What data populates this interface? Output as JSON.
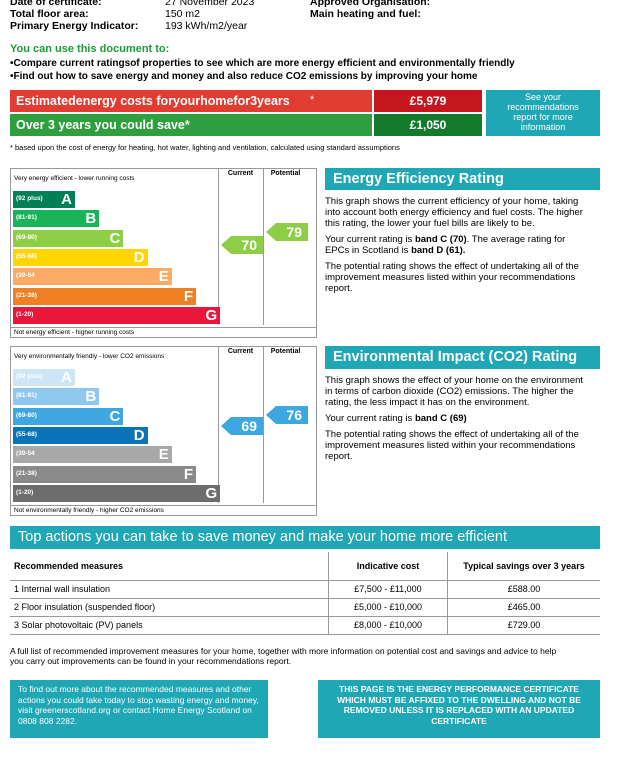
{
  "header": {
    "rows": [
      {
        "label": "Date of certificate:",
        "value": "27 November 2023"
      },
      {
        "label": "Total floor area:",
        "value": "150 m2"
      },
      {
        "label": "Primary Energy Indicator:",
        "value": "193 kWh/m2/year"
      }
    ],
    "right_labels": [
      "Approved Organisation:",
      "Main heating and fuel:"
    ]
  },
  "intro": {
    "title": "You can use this document to:",
    "bullets": [
      "•Compare current ratingsof properties to see which are more energy efficient and environmentally friendly",
      "•Find out how to save energy and money and also reduce CO2 emissions by improving your home"
    ]
  },
  "costs": {
    "row1_label": "Estimatedenergy costs foryourhomefor3years",
    "row1_mark": "*",
    "row1_value": "£5,979",
    "row2_label": "Over 3 years you could save*",
    "row2_value": "£1,050",
    "side_note": "See your recommendations report for more information",
    "footnote": "* based upon the cost of energy for heating, hot water, lighting and ventilation, calculated using standard assumptions"
  },
  "energy_chart": {
    "top_label": "Very energy efficient - lower running costs",
    "bottom_label": "Not energy efficient - higher running costs",
    "column_headers": [
      "Current",
      "Potential"
    ],
    "bands": [
      {
        "range": "(92 plus)",
        "letter": "A"
      },
      {
        "range": "(81-91)",
        "letter": "B"
      },
      {
        "range": "(69-80)",
        "letter": "C"
      },
      {
        "range": "(55-68)",
        "letter": "D"
      },
      {
        "range": "(39-54",
        "letter": "E"
      },
      {
        "range": "(21-38)",
        "letter": "F"
      },
      {
        "range": "(1-20)",
        "letter": "G"
      }
    ],
    "current": 70,
    "potential": 79
  },
  "energy_text": {
    "title": "Energy Efficiency Rating",
    "paragraph1": "This graph shows the current efficiency of your home, taking into account both energy efficiency and fuel costs. The higher this rating, the lower your fuel bills are likely to be.",
    "paragraph2": [
      "Your current rating is ",
      "band C (70)",
      ". The average rating for EPCs in Scotland is ",
      "band D (61)."
    ],
    "paragraph3": "The potential rating shows the effect of undertaking all of the improvement measures listed within your recommendations report."
  },
  "environment_chart": {
    "top_label": "Very environmentally friendly - lower CO2 emissions",
    "bottom_label": "Not environmentally friendly - higher CO2 emissions",
    "column_headers": [
      "Current",
      "Potential"
    ],
    "bands": [
      {
        "range": "(92 plus)",
        "letter": "A"
      },
      {
        "range": "(81-91)",
        "letter": "B"
      },
      {
        "range": "(69-80)",
        "letter": "C"
      },
      {
        "range": "(55-68)",
        "letter": "D"
      },
      {
        "range": "(39-54",
        "letter": "E"
      },
      {
        "range": "(21-38)",
        "letter": "F"
      },
      {
        "range": "(1-20)",
        "letter": "G"
      }
    ],
    "current": 69,
    "potential": 76
  },
  "environment_text": {
    "title": "Environmental Impact (CO2) Rating",
    "paragraph1": "This graph shows the effect of your home on the environment in terms of carbon dioxide (CO2) emissions. The higher the rating, the less impact it has on the environment.",
    "paragraph2": [
      "Your current rating is ",
      "band C (69)"
    ],
    "paragraph3": "The potential rating shows the effect of undertaking all of the improvement measures listed within your recommendations report."
  },
  "actions": {
    "title": "Top actions you can take to save money and make your home more efficient",
    "columns": [
      "Recommended measures",
      "Indicative cost",
      "Typical savings over 3 years"
    ],
    "rows": [
      [
        "1 Internal wall insulation",
        "£7,500 - £11,000",
        "£588.00"
      ],
      [
        "2 Floor insulation (suspended floor)",
        "£5,000 - £10,000",
        "£465.00"
      ],
      [
        "3 Solar photovoltaic (PV) panels",
        "£8,000 - £10,000",
        "£729.00"
      ]
    ]
  },
  "footer": {
    "note": "A full list of recommended improvement measures for your home, together with more information on potential cost and savings and advice to help you carry out improvements can be found in your recommendations report.",
    "left_box": "To find out more about the recommended measures and other actions you could take today to stop wasting energy and money, visit greenerscotland.org or contact Home Energy Scotland on 0808 808 2282.",
    "right_box": "THIS PAGE IS THE ENERGY PERFORMANCE CERTIFICATE WHICH MUST BE AFFIXED TO THE DWELLING AND NOT BE REMOVED UNLESS IT IS REPLACED WITH AN UPDATED CERTIFICATE"
  }
}
